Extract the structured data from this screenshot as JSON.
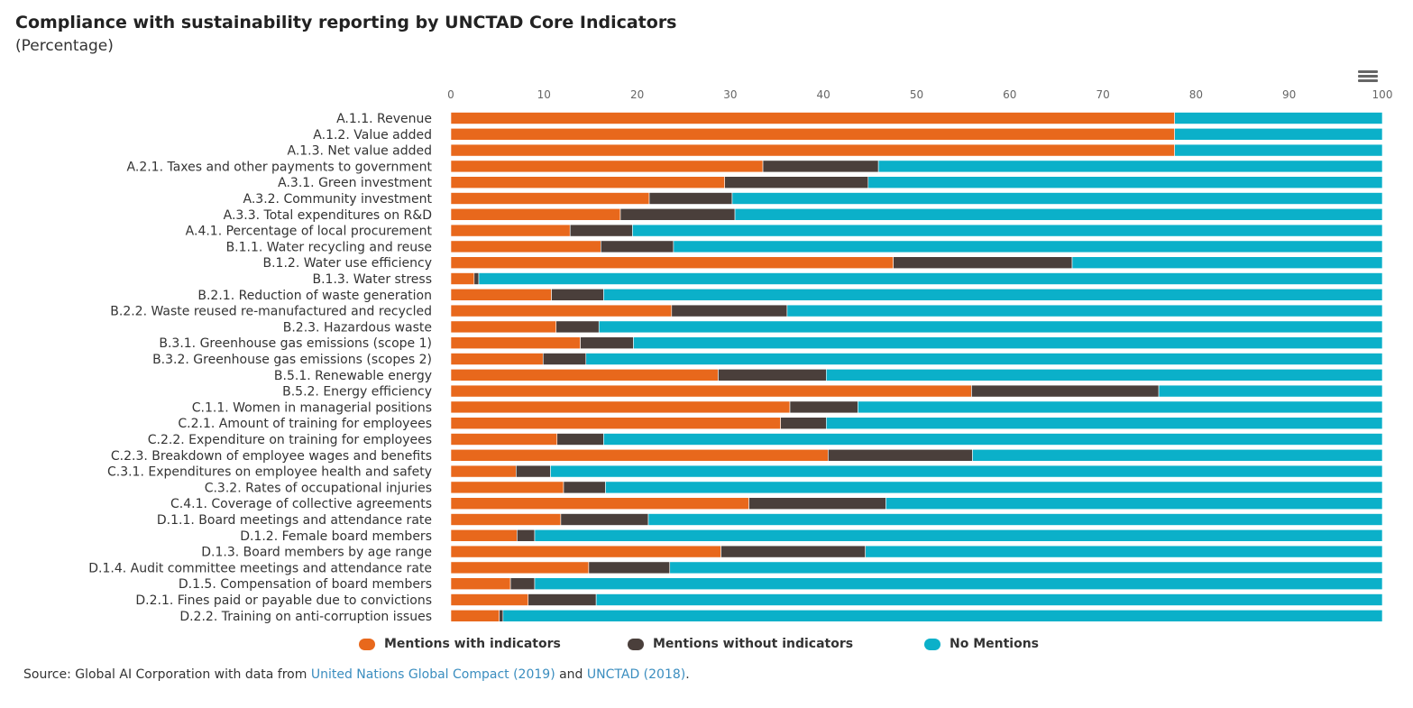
{
  "header": {
    "title": "Compliance with sustainability reporting by UNCTAD Core Indicators",
    "subtitle": "(Percentage)",
    "menu_icon": "hamburger-menu-icon"
  },
  "legend": {
    "items": [
      {
        "label": "Mentions with indicators",
        "color": "#e8681c"
      },
      {
        "label": "Mentions without indicators",
        "color": "#4a3f3b"
      },
      {
        "label": "No Mentions",
        "color": "#0bb0c9"
      }
    ]
  },
  "source": {
    "prefix": "Source: Global AI Corporation with data from ",
    "link1": "United Nations Global Compact (2019)",
    "middle": " and ",
    "link2": "UNCTAD (2018)",
    "suffix": "."
  },
  "chart_data": {
    "type": "bar",
    "orientation": "horizontal",
    "stacked": true,
    "title": "Compliance with sustainability reporting by UNCTAD Core Indicators",
    "subtitle": "(Percentage)",
    "xlim": [
      0,
      100
    ],
    "xticks": [
      0,
      10,
      20,
      30,
      40,
      50,
      60,
      70,
      80,
      90,
      100
    ],
    "legend_position": "bottom",
    "categories": [
      "A.1.1. Revenue",
      "A.1.2. Value added",
      "A.1.3. Net value added",
      "A.2.1. Taxes and other payments to government",
      "A.3.1. Green investment",
      "A.3.2. Community investment",
      "A.3.3. Total expenditures on R&D",
      "A.4.1. Percentage of local procurement",
      "B.1.1. Water recycling and reuse",
      "B.1.2. Water use efficiency",
      "B.1.3. Water stress",
      "B.2.1. Reduction of waste generation",
      "B.2.2. Waste reused re-manufactured and recycled",
      "B.2.3. Hazardous waste",
      "B.3.1. Greenhouse gas emissions (scope 1)",
      "B.3.2. Greenhouse gas emissions (scopes 2)",
      "B.5.1. Renewable energy",
      "B.5.2. Energy efficiency",
      "C.1.1. Women in managerial positions",
      "C.2.1. Amount of training for employees",
      "C.2.2. Expenditure on training for employees",
      "C.2.3. Breakdown of employee wages and benefits",
      "C.3.1. Expenditures on employee health and safety",
      "C.3.2. Rates of occupational injuries",
      "C.4.1. Coverage of collective agreements",
      "D.1.1. Board meetings and attendance rate",
      "D.1.2. Female board members",
      "D.1.3. Board members by age range",
      "D.1.4. Audit committee meetings and attendance rate",
      "D.1.5. Compensation of board members",
      "D.2.1. Fines paid or payable due to convictions",
      "D.2.2. Training on anti-corruption issues"
    ],
    "series": [
      {
        "name": "Mentions with indicators",
        "color": "#e8681c",
        "values": [
          77.7,
          77.7,
          77.7,
          33.5,
          29.4,
          21.3,
          18.2,
          12.8,
          16.1,
          47.5,
          2.5,
          10.8,
          23.7,
          11.3,
          13.9,
          9.9,
          28.7,
          55.9,
          36.4,
          35.4,
          11.4,
          40.5,
          7.0,
          12.1,
          32.0,
          11.8,
          7.1,
          29.0,
          14.8,
          6.4,
          8.3,
          5.2
        ],
        "value_label": ""
      },
      {
        "name": "Mentions without indicators",
        "color": "#4a3f3b",
        "values": [
          0.0,
          0.0,
          0.0,
          12.4,
          15.4,
          8.9,
          12.3,
          6.7,
          7.8,
          19.2,
          0.5,
          5.6,
          12.4,
          4.6,
          5.7,
          4.6,
          11.6,
          20.1,
          7.3,
          4.9,
          5.0,
          15.5,
          3.7,
          4.5,
          14.7,
          9.4,
          1.9,
          15.5,
          8.7,
          2.6,
          7.3,
          0.4
        ],
        "value_label": ""
      },
      {
        "name": "No Mentions",
        "color": "#0bb0c9",
        "values": [
          22.3,
          22.3,
          22.3,
          54.1,
          55.2,
          69.8,
          69.5,
          80.5,
          76.1,
          33.3,
          97.0,
          83.6,
          63.9,
          84.1,
          80.4,
          85.5,
          59.7,
          24.0,
          56.3,
          59.7,
          83.6,
          44.0,
          89.3,
          83.4,
          53.3,
          78.8,
          91.0,
          55.5,
          76.5,
          91.0,
          84.4,
          94.4
        ],
        "value_label": ""
      }
    ]
  }
}
